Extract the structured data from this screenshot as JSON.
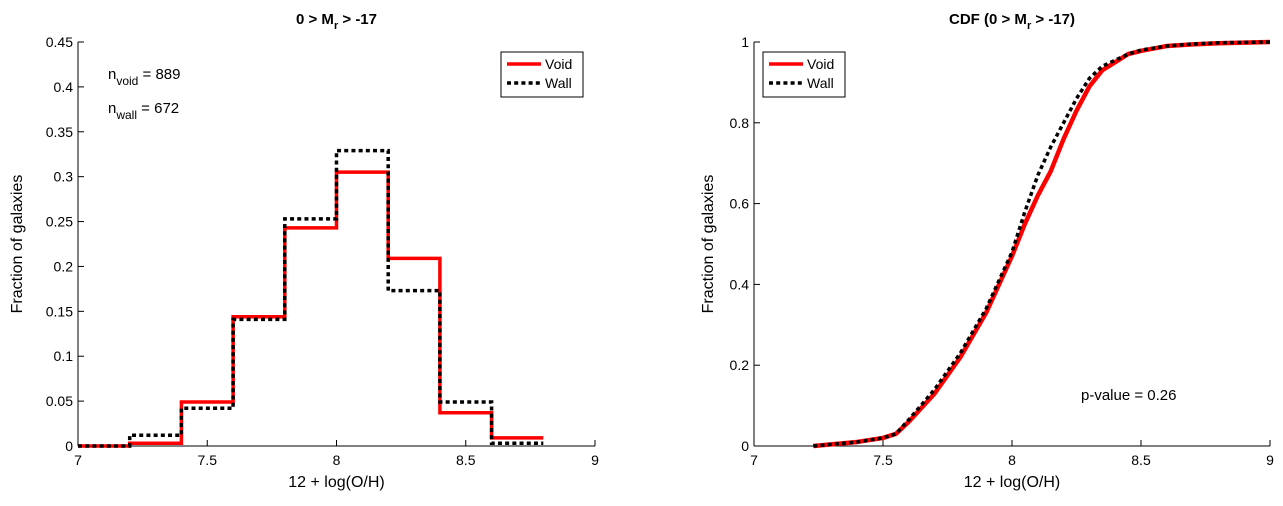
{
  "chart_data": [
    {
      "type": "step-histogram",
      "title": {
        "main": "0 > M",
        "sub": "r",
        "suffix": " > -17"
      },
      "xlabel": "12 + log(O/H)",
      "ylabel": "Fraction of galaxies",
      "xlim": [
        7,
        9
      ],
      "ylim": [
        0,
        0.45
      ],
      "xticks": [
        "7",
        "7.5",
        "8",
        "8.5",
        "9"
      ],
      "yticks": [
        "0",
        "0.05",
        "0.1",
        "0.15",
        "0.2",
        "0.25",
        "0.3",
        "0.35",
        "0.4",
        "0.45"
      ],
      "bin_edges": [
        7.0,
        7.2,
        7.4,
        7.6,
        7.8,
        8.0,
        8.2,
        8.4,
        8.6,
        8.8
      ],
      "series": [
        {
          "name": "Void",
          "color": "#ff0000",
          "style": "solid",
          "values": [
            0.0,
            0.003,
            0.049,
            0.144,
            0.243,
            0.305,
            0.209,
            0.037,
            0.009
          ]
        },
        {
          "name": "Wall",
          "color": "#000000",
          "style": "dotted",
          "values": [
            0.0,
            0.012,
            0.042,
            0.141,
            0.253,
            0.329,
            0.173,
            0.049,
            0.003
          ]
        }
      ],
      "annotations": [
        {
          "base": "n",
          "sub": "void",
          "rest": " = 889"
        },
        {
          "base": "n",
          "sub": "wall",
          "rest": " = 672"
        }
      ],
      "legend": "top-right",
      "grid": false
    },
    {
      "type": "line",
      "title": {
        "main": "CDF (0 > M",
        "sub": "r",
        "suffix": " > -17)"
      },
      "xlabel": "12 + log(O/H)",
      "ylabel": "Fraction of galaxies",
      "xlim": [
        7,
        9
      ],
      "ylim": [
        0,
        1
      ],
      "xticks": [
        "7",
        "7.5",
        "8",
        "8.5",
        "9"
      ],
      "yticks": [
        "0",
        "0.2",
        "0.4",
        "0.6",
        "0.8",
        "1"
      ],
      "series": [
        {
          "name": "Void",
          "color": "#ff0000",
          "style": "solid",
          "x": [
            7.23,
            7.4,
            7.5,
            7.55,
            7.6,
            7.7,
            7.8,
            7.9,
            8.0,
            8.05,
            8.1,
            8.15,
            8.2,
            8.25,
            8.3,
            8.35,
            8.4,
            8.45,
            8.5,
            8.6,
            8.7,
            8.8,
            9.0
          ],
          "y": [
            0.0,
            0.01,
            0.02,
            0.03,
            0.06,
            0.13,
            0.22,
            0.33,
            0.47,
            0.55,
            0.62,
            0.68,
            0.76,
            0.83,
            0.89,
            0.93,
            0.95,
            0.97,
            0.978,
            0.99,
            0.994,
            0.997,
            1.0
          ]
        },
        {
          "name": "Wall",
          "color": "#000000",
          "style": "dotted",
          "x": [
            7.23,
            7.4,
            7.5,
            7.55,
            7.6,
            7.7,
            7.8,
            7.9,
            8.0,
            8.05,
            8.1,
            8.15,
            8.2,
            8.25,
            8.3,
            8.35,
            8.4,
            8.45,
            8.5,
            8.6,
            8.7,
            8.8,
            9.0
          ],
          "y": [
            0.0,
            0.01,
            0.02,
            0.03,
            0.065,
            0.14,
            0.23,
            0.34,
            0.48,
            0.58,
            0.67,
            0.74,
            0.8,
            0.86,
            0.91,
            0.94,
            0.955,
            0.97,
            0.98,
            0.99,
            0.995,
            0.998,
            1.0
          ]
        }
      ],
      "annotations": [
        {
          "text": "p-value = 0.26"
        }
      ],
      "legend": "top-left",
      "grid": false
    }
  ]
}
